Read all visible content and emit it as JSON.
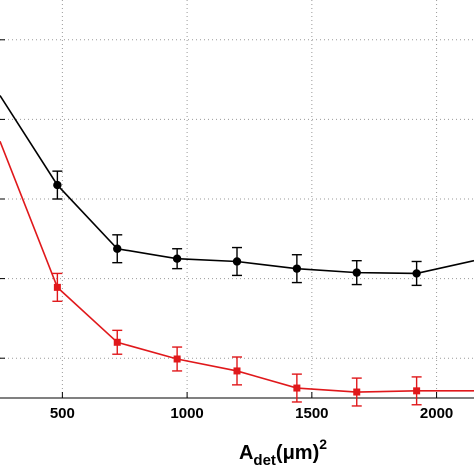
{
  "chart_data": {
    "type": "line",
    "title": "",
    "xlabel": {
      "main": "A",
      "subscript": "det",
      "units": "(μm)",
      "superscript": "2"
    },
    "ylabel": "",
    "xlim": [
      250,
      2150
    ],
    "ylim": [
      0,
      1
    ],
    "x_ticks": [
      500,
      1000,
      1500,
      2000
    ],
    "y_gridlines": [
      0.1,
      0.3,
      0.5,
      0.7,
      0.9
    ],
    "grid": true,
    "grid_style": "dotted",
    "legend": "none",
    "series": [
      {
        "color": "#000000",
        "marker": "circle",
        "points": [
          {
            "x": 250,
            "y": 0.76,
            "err": 0.0
          },
          {
            "x": 480,
            "y": 0.535,
            "err": 0.035
          },
          {
            "x": 720,
            "y": 0.375,
            "err": 0.035
          },
          {
            "x": 960,
            "y": 0.35,
            "err": 0.025
          },
          {
            "x": 1200,
            "y": 0.343,
            "err": 0.035
          },
          {
            "x": 1440,
            "y": 0.325,
            "err": 0.035
          },
          {
            "x": 1680,
            "y": 0.315,
            "err": 0.03
          },
          {
            "x": 1920,
            "y": 0.313,
            "err": 0.03
          },
          {
            "x": 2150,
            "y": 0.345,
            "err": 0.0
          }
        ]
      },
      {
        "color": "#e0181b",
        "marker": "square",
        "points": [
          {
            "x": 250,
            "y": 0.645,
            "err": 0.0
          },
          {
            "x": 480,
            "y": 0.278,
            "err": 0.035
          },
          {
            "x": 720,
            "y": 0.14,
            "err": 0.03
          },
          {
            "x": 960,
            "y": 0.098,
            "err": 0.03
          },
          {
            "x": 1200,
            "y": 0.068,
            "err": 0.035
          },
          {
            "x": 1440,
            "y": 0.025,
            "err": 0.035
          },
          {
            "x": 1680,
            "y": 0.015,
            "err": 0.035
          },
          {
            "x": 1920,
            "y": 0.018,
            "err": 0.035
          },
          {
            "x": 2150,
            "y": 0.018,
            "err": 0.0
          }
        ]
      }
    ]
  }
}
